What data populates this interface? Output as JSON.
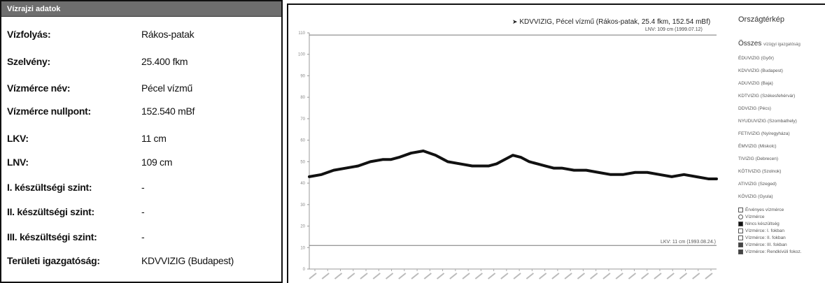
{
  "info": {
    "header": "Vízrajzi adatok",
    "rows": [
      {
        "label": "Vízfolyás:",
        "value": "Rákos-patak"
      },
      {
        "label": "Szelvény:",
        "value": "25.400 fkm"
      },
      {
        "label": "Vízmérce név:",
        "value": "Pécel vízmű"
      },
      {
        "label": "Vízmérce nullpont:",
        "value": "152.540 mBf"
      },
      {
        "label": "LKV:",
        "value": "11 cm"
      },
      {
        "label": "LNV:",
        "value": "109 cm"
      },
      {
        "label": "I. készültségi szint:",
        "value": "-"
      },
      {
        "label": "II. készültségi szint:",
        "value": "-"
      },
      {
        "label": "III. készültségi szint:",
        "value": "-"
      },
      {
        "label": "Területi igazgatóság:",
        "value": "KDVVIZIG (Budapest)"
      }
    ]
  },
  "chart_data": {
    "type": "line",
    "title": "KDVVIZIG, Pécel vízmű (Rákos-patak, 25.4 fkm, 152.54 mBf)",
    "subtitle": "LNV: 109 cm (1999.07.12)",
    "ylim": [
      0,
      110
    ],
    "yticks": [
      0,
      10,
      20,
      30,
      40,
      50,
      60,
      70,
      80,
      90,
      100,
      110
    ],
    "ytick_labels": [
      "0",
      "10",
      "20",
      "30",
      "40",
      "50",
      "60",
      "70",
      "80",
      "90",
      "100",
      "110"
    ],
    "grid": false,
    "reference_lines": [
      {
        "value": 109,
        "label": ""
      },
      {
        "value": 11,
        "label": "LKV: 11 cm (1993.08.24.)"
      }
    ],
    "series": [
      {
        "color": "#111111",
        "x": [
          0,
          3,
          6,
          9,
          12,
          15,
          18,
          20,
          22,
          25,
          28,
          31,
          34,
          37,
          40,
          42,
          44,
          46,
          48,
          50,
          52,
          54,
          56,
          58,
          60,
          62,
          65,
          68,
          71,
          74,
          77,
          80,
          83,
          86,
          89,
          92,
          95,
          98,
          100
        ],
        "values": [
          43,
          44,
          46,
          47,
          48,
          50,
          51,
          51,
          52,
          54,
          55,
          53,
          50,
          49,
          48,
          48,
          48,
          49,
          51,
          53,
          52,
          50,
          49,
          48,
          47,
          47,
          46,
          46,
          45,
          44,
          44,
          45,
          45,
          44,
          43,
          44,
          43,
          42,
          42
        ]
      }
    ],
    "xtick_count": 32
  },
  "map": {
    "title": "Országtérkép",
    "select_label": "Összes",
    "select_note": "vízügyi igazgatóság",
    "directorates": [
      "ÉDUVIZIG (Győr)",
      "KDVVIZIG (Budapest)",
      "ADUVIZIG (Baja)",
      "KDTVIZIG (Székesfehérvár)",
      "DDVIZIG (Pécs)",
      "NYUDUVIZIG (Szombathely)",
      "FETIVIZIG (Nyíregyháza)",
      "ÉMVIZIG (Miskolc)",
      "TIVIZIG (Debrecen)",
      "KÖTIVIZIG (Szolnok)",
      "ATIVIZIG (Szeged)",
      "KÖVIZIG (Gyula)"
    ],
    "legend": [
      {
        "label": "Érvényes vízmérce",
        "shape": "square-empty"
      },
      {
        "label": "Vízmérce",
        "shape": "circle-empty"
      },
      {
        "label": "Nincs készültség",
        "shape": "square-filled"
      },
      {
        "label": "Vízmérce: I. fokban",
        "shape": "square-empty"
      },
      {
        "label": "Vízmérce: II. fokban",
        "shape": "square-empty"
      },
      {
        "label": "Vízmérce: III. fokban",
        "shape": "square-dark"
      },
      {
        "label": "Vízmérce: Rendkívüli fokoz.",
        "shape": "square-dark"
      }
    ]
  }
}
